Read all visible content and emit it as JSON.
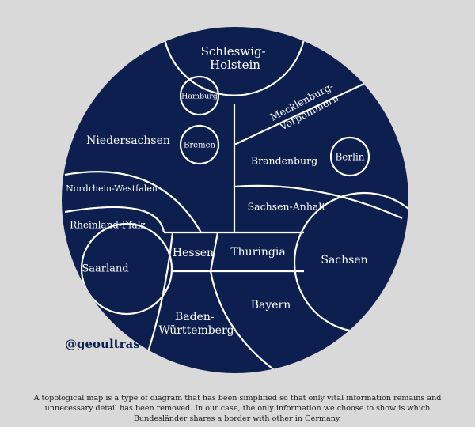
{
  "colors": {
    "background": "#d9d9d9",
    "map_fill": "#0d1f4e",
    "borders": "#ffffff",
    "handle_text": "#0d1f4e",
    "caption_text": "#1a1a1a"
  },
  "regions": {
    "schleswig_holstein": [
      "Schleswig-",
      "Holstein"
    ],
    "hamburg": "Hamburg",
    "mecklenburg_vorpommern": [
      "Mecklenburg-",
      "Vorpommern"
    ],
    "niedersachsen": "Niedersachsen",
    "bremen": "Bremen",
    "brandenburg": "Brandenburg",
    "berlin": "Berlin",
    "nordrhein_westfalen": "Nordrhein-Westfalen",
    "sachsen_anhalt": "Sachsen-Anhalt",
    "rheinland_pfalz": "Rheinland-Pfalz",
    "hessen": "Hessen",
    "thuringia": "Thuringia",
    "sachsen": "Sachsen",
    "saarland": "Saarland",
    "bayern": "Bayern",
    "baden_wurttemberg": [
      "Baden-",
      "Württemberg"
    ]
  },
  "handle": "@geoultras",
  "caption": "A topological map is a type of diagram that has been simplified so that only vital information remains and unnecessary detail has been removed. In our case, the only information we choose to show is which Bundesländer shares a border with other in  Germany."
}
